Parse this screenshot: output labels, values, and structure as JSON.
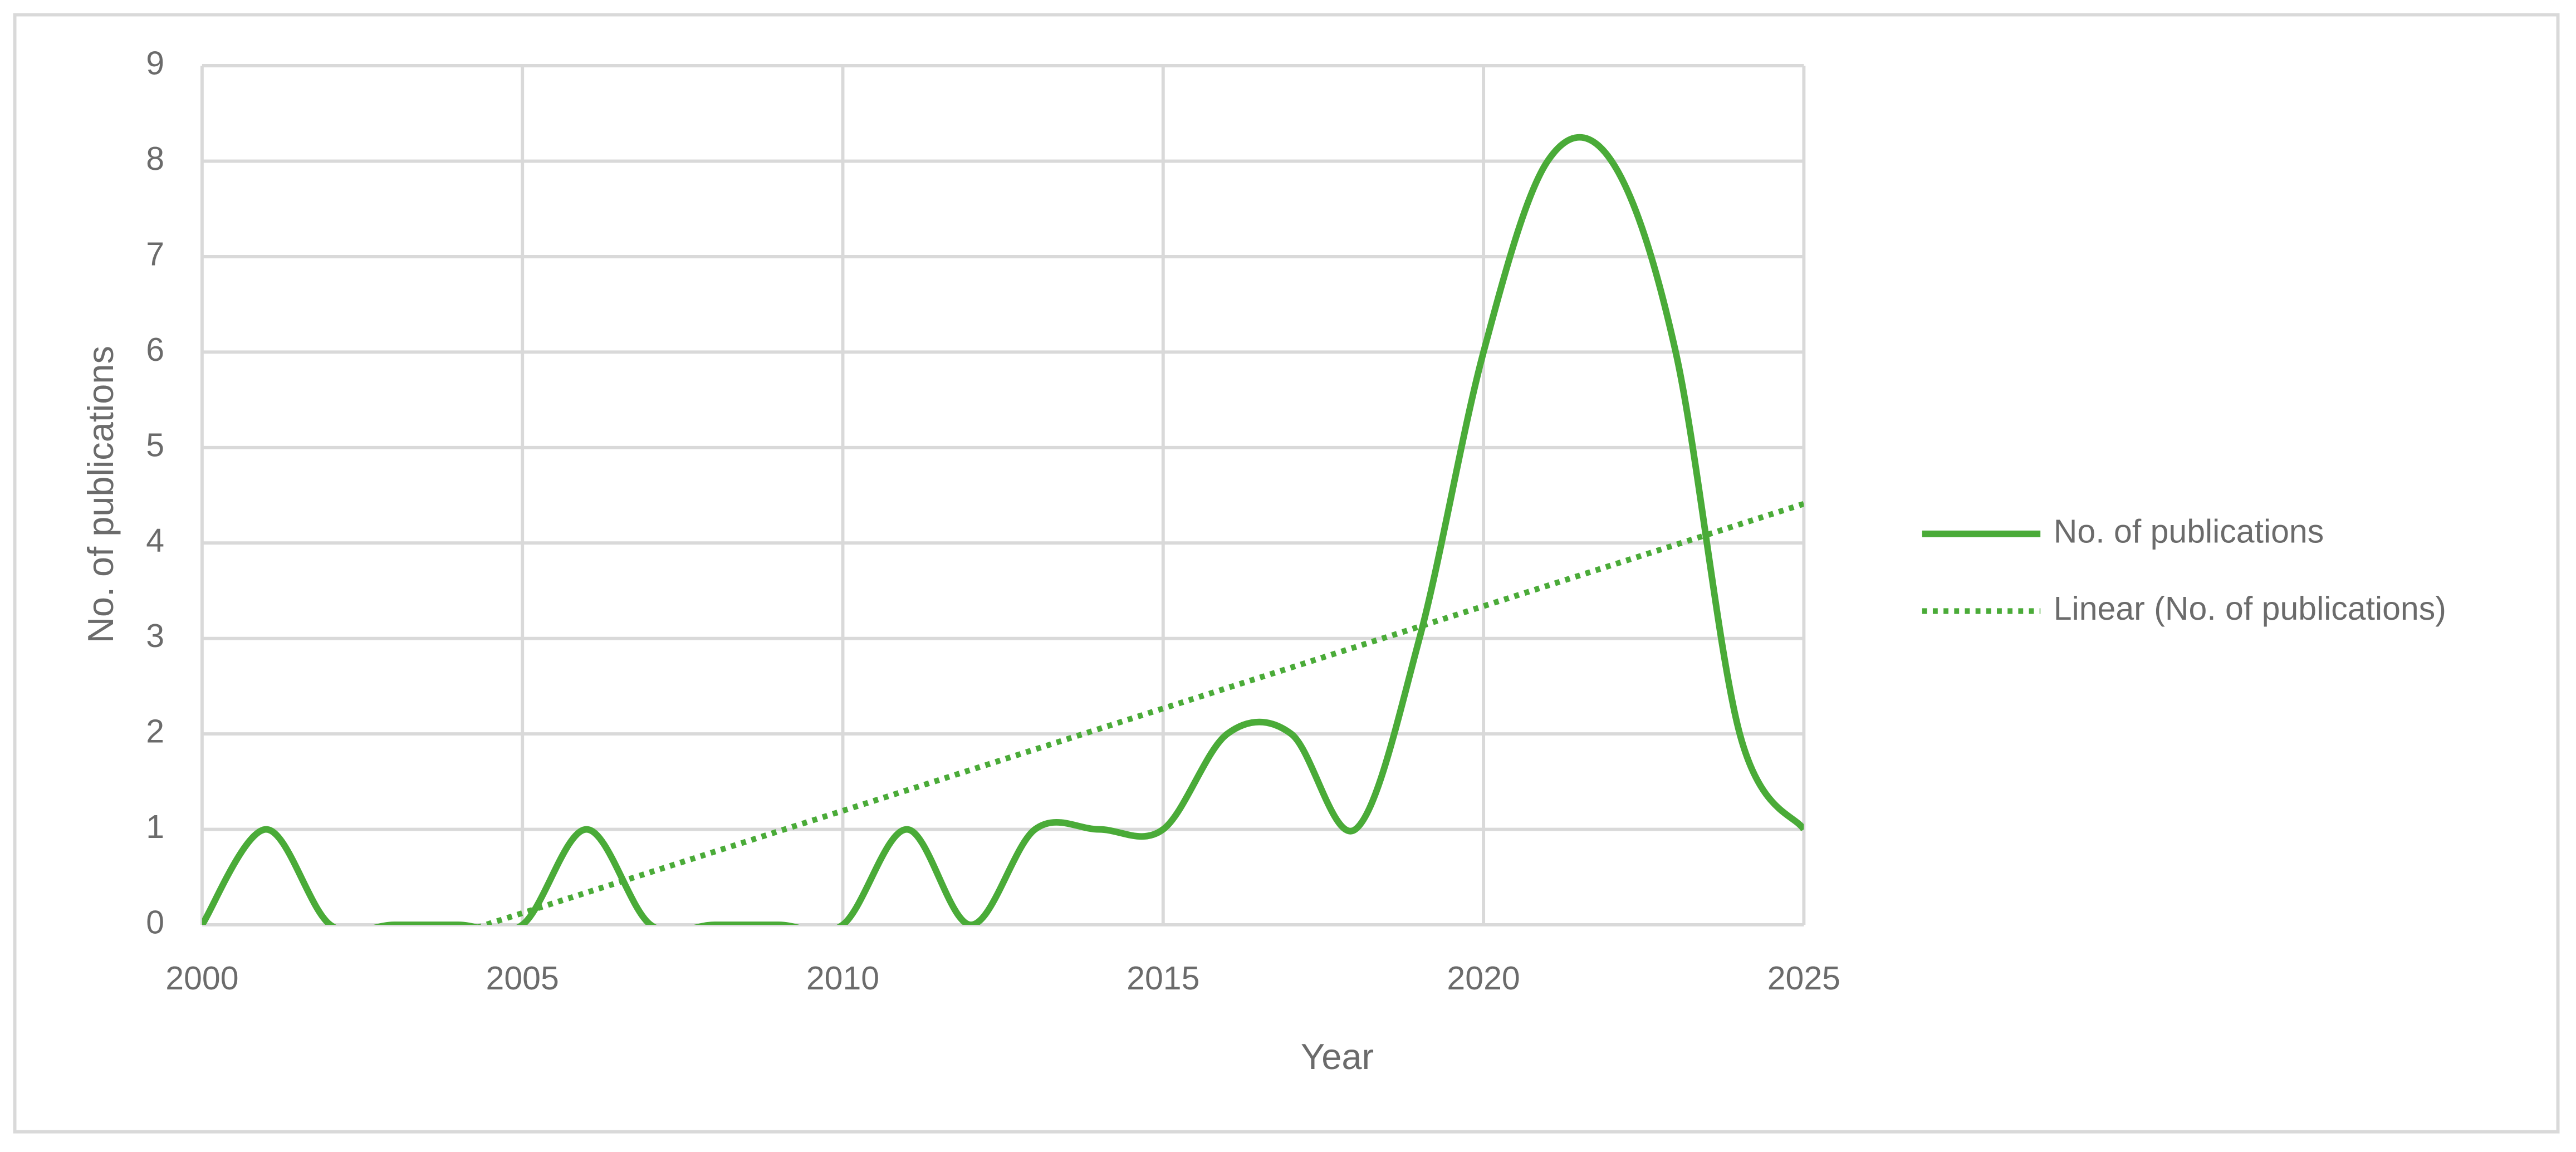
{
  "chart_data": {
    "type": "line",
    "x_label": "Year",
    "y_label": "No. of publications",
    "x": [
      2000,
      2001,
      2002,
      2003,
      2004,
      2005,
      2006,
      2007,
      2008,
      2009,
      2010,
      2011,
      2012,
      2013,
      2014,
      2015,
      2016,
      2017,
      2018,
      2019,
      2020,
      2021,
      2022,
      2023,
      2024,
      2025
    ],
    "series": [
      {
        "name": "No. of publications",
        "color": "#4aab38",
        "values": [
          0,
          1,
          0,
          0,
          0,
          0,
          1,
          0,
          0,
          0,
          0,
          1,
          0,
          1,
          1,
          1,
          2,
          2,
          1,
          3,
          6,
          8,
          8,
          6,
          2,
          1
        ]
      }
    ],
    "trendline": {
      "type": "linear",
      "name": "Linear (No. of publications)",
      "color": "#4aab38"
    },
    "smooth": true,
    "xlim": [
      2000,
      2025
    ],
    "xticks": [
      2000,
      2005,
      2010,
      2015,
      2020,
      2025
    ],
    "ylim": [
      0,
      9
    ],
    "yticks": [
      0,
      1,
      2,
      3,
      4,
      5,
      6,
      7,
      8,
      9
    ],
    "grid": true,
    "legend": "right"
  }
}
